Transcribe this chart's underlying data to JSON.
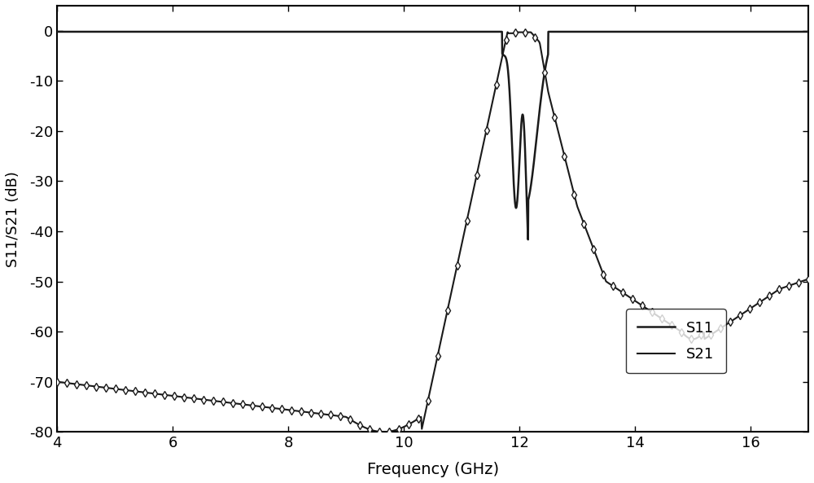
{
  "title": "",
  "xlabel": "Frequency (GHz)",
  "ylabel": "S11/S21 (dB)",
  "xlim": [
    4,
    17
  ],
  "ylim": [
    -80,
    5
  ],
  "xticks": [
    4,
    6,
    8,
    10,
    12,
    14,
    16
  ],
  "yticks": [
    0,
    -10,
    -20,
    -30,
    -40,
    -50,
    -60,
    -70,
    -80
  ],
  "background_color": "#ffffff",
  "line_color": "#1a1a1a",
  "legend_labels": [
    "S11",
    "S21"
  ],
  "figsize": [
    10.0,
    5.93
  ],
  "dpi": 100
}
